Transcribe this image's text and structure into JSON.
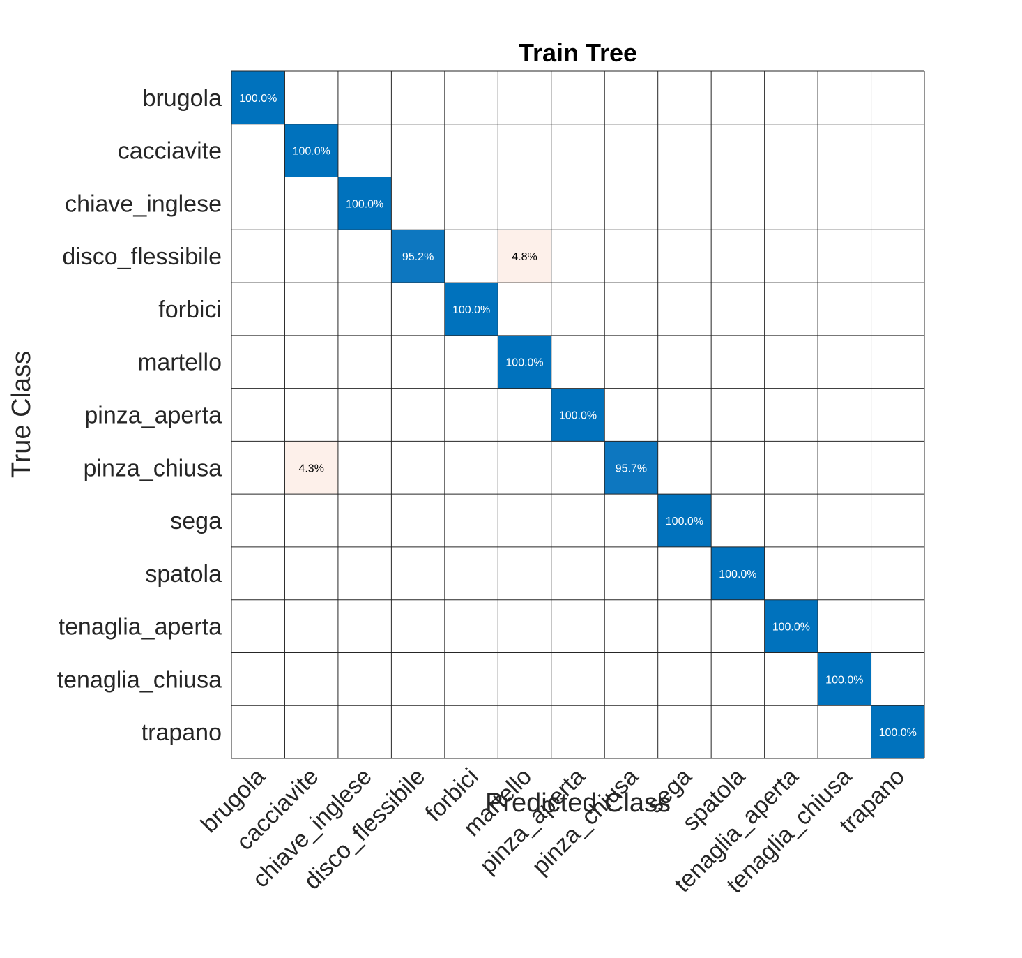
{
  "chart_data": {
    "type": "heatmap",
    "title": "Train Tree",
    "xlabel": "Predicted Class",
    "ylabel": "True Class",
    "classes": [
      "brugola",
      "cacciavite",
      "chiave_inglese",
      "disco_flessibile",
      "forbici",
      "martello",
      "pinza_aperta",
      "pinza_chiusa",
      "sega",
      "spatola",
      "tenaglia_aperta",
      "tenaglia_chiusa",
      "trapano"
    ],
    "cells": [
      {
        "row": 0,
        "col": 0,
        "value": 100.0,
        "label": "100.0%"
      },
      {
        "row": 1,
        "col": 1,
        "value": 100.0,
        "label": "100.0%"
      },
      {
        "row": 2,
        "col": 2,
        "value": 100.0,
        "label": "100.0%"
      },
      {
        "row": 3,
        "col": 3,
        "value": 95.2,
        "label": "95.2%"
      },
      {
        "row": 3,
        "col": 5,
        "value": 4.8,
        "label": "4.8%"
      },
      {
        "row": 4,
        "col": 4,
        "value": 100.0,
        "label": "100.0%"
      },
      {
        "row": 5,
        "col": 5,
        "value": 100.0,
        "label": "100.0%"
      },
      {
        "row": 6,
        "col": 6,
        "value": 100.0,
        "label": "100.0%"
      },
      {
        "row": 7,
        "col": 1,
        "value": 4.3,
        "label": "4.3%"
      },
      {
        "row": 7,
        "col": 7,
        "value": 95.7,
        "label": "95.7%"
      },
      {
        "row": 8,
        "col": 8,
        "value": 100.0,
        "label": "100.0%"
      },
      {
        "row": 9,
        "col": 9,
        "value": 100.0,
        "label": "100.0%"
      },
      {
        "row": 10,
        "col": 10,
        "value": 100.0,
        "label": "100.0%"
      },
      {
        "row": 11,
        "col": 11,
        "value": 100.0,
        "label": "100.0%"
      },
      {
        "row": 12,
        "col": 12,
        "value": 100.0,
        "label": "100.0%"
      }
    ],
    "colors": {
      "correct_full": "#0072bd",
      "correct_partial": "#0d77c0",
      "error": "#fdf0ea",
      "grid": "#262626",
      "text_dark": "#262626",
      "title": "#000000",
      "label_on_blue": "#ffffff",
      "label_on_light": "#000000"
    }
  }
}
